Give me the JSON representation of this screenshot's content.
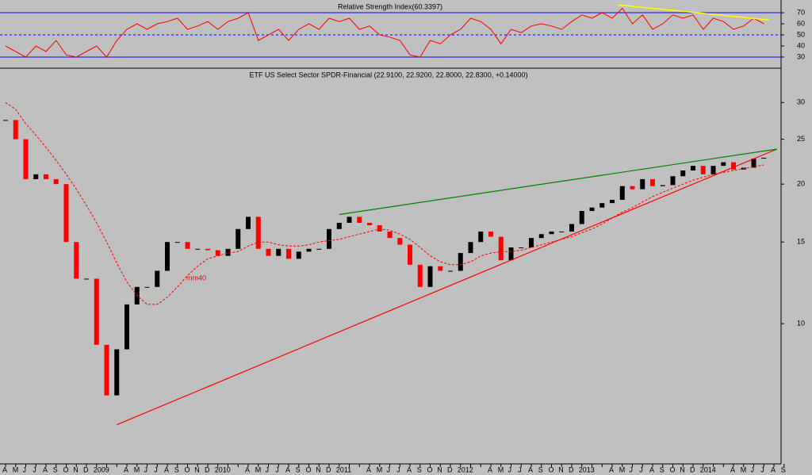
{
  "chart_data": [
    {
      "type": "line",
      "title": "Relative Strength Index(60.3397)",
      "categories": [
        "A",
        "M",
        "J",
        "J",
        "A",
        "S",
        "O",
        "N",
        "D",
        "2009",
        null,
        null,
        "A",
        "M",
        "J",
        "J",
        "A",
        "S",
        "O",
        "N",
        "D",
        "2010",
        null,
        null,
        "A",
        "M",
        "J",
        "J",
        "A",
        "S",
        "O",
        "N",
        "D",
        "2011",
        null,
        null,
        "A",
        "M",
        "J",
        "J",
        "A",
        "S",
        "O",
        "N",
        "D",
        "2012",
        null,
        null,
        "A",
        "M",
        "J",
        "J",
        "A",
        "S",
        "O",
        "N",
        "D",
        "2013",
        null,
        null,
        "A",
        "M",
        "J",
        "J",
        "A",
        "S",
        "O",
        "N",
        "D",
        "2014",
        null,
        null,
        "A",
        "M",
        "J",
        "J",
        "A",
        "S"
      ],
      "series": [
        {
          "name": "RSI",
          "color": "#ff0000",
          "values": [
            40,
            35,
            30,
            40,
            35,
            45,
            32,
            30,
            35,
            40,
            30,
            45,
            55,
            60,
            55,
            60,
            62,
            65,
            55,
            58,
            62,
            55,
            62,
            65,
            70,
            45,
            50,
            55,
            45,
            55,
            60,
            55,
            65,
            62,
            65,
            55,
            58,
            50,
            48,
            45,
            32,
            30,
            45,
            42,
            50,
            55,
            65,
            62,
            55,
            42,
            55,
            52,
            58,
            60,
            58,
            55,
            62,
            68,
            65,
            70,
            65,
            74,
            60,
            68,
            55,
            60,
            68,
            65,
            68,
            55,
            65,
            62,
            55,
            58,
            65,
            60,
            null,
            null
          ]
        }
      ],
      "ylim": [
        21.4,
        78.6
      ],
      "yticks": [
        30,
        40,
        50,
        60,
        70
      ],
      "levels": [
        {
          "value": 70,
          "style": "solid"
        },
        {
          "value": 50,
          "style": "dashed"
        },
        {
          "value": 30,
          "style": "solid"
        }
      ],
      "trendline": {
        "color": "#ffff00",
        "x": [
          60.6,
          75.5
        ],
        "values": [
          77,
          63.5
        ]
      }
    },
    {
      "type": "candlestick",
      "title": "ETF US Select Sector SPDR-Financial (22.9100, 22.9200, 22.8000, 22.8300, +0.14000)",
      "log_scale": true,
      "ylim": [
        4.98,
        35.3
      ],
      "yticks": [
        10,
        15,
        20,
        25,
        30
      ],
      "series": [
        {
          "name": "close",
          "up_color": "#000000",
          "down_color": "#ff0000",
          "values": [
            27.5,
            25,
            20.5,
            21,
            20.5,
            20,
            15,
            12.5,
            12.5,
            9,
            7,
            8.8,
            11,
            12,
            12,
            13,
            15,
            15,
            14.5,
            14.5,
            14.4,
            14,
            14.5,
            16,
            17,
            14.5,
            14,
            14.5,
            13.8,
            14.3,
            14.5,
            14.5,
            16,
            16.5,
            17,
            16.5,
            16.3,
            15.8,
            15.3,
            14.8,
            13.4,
            12,
            13.3,
            13,
            13,
            14.2,
            15,
            15.8,
            15.4,
            13.7,
            14.6,
            14.6,
            15.3,
            15.6,
            15.8,
            15.8,
            16.4,
            17.5,
            17.8,
            18.2,
            18.5,
            19.8,
            19.5,
            20.5,
            19.8,
            19.9,
            20.8,
            21.4,
            21.9,
            21,
            21.9,
            22.3,
            21.5,
            21.7,
            22.7,
            22.8,
            null,
            null
          ]
        },
        {
          "name": "mm40",
          "color": "#ff0000",
          "values": [
            30,
            29,
            27,
            25.5,
            24,
            22.5,
            21,
            19.5,
            18,
            16.5,
            15,
            13.5,
            12.3,
            11.5,
            11,
            11,
            11.4,
            12,
            12.7,
            13.3,
            13.8,
            14,
            14.2,
            14.3,
            14.7,
            15,
            15,
            14.8,
            14.7,
            14.7,
            14.8,
            15,
            15.1,
            15.2,
            15.4,
            15.6,
            15.8,
            16,
            15.9,
            15.6,
            15.2,
            14.6,
            14,
            13.6,
            13.4,
            13.4,
            13.6,
            14,
            14.2,
            14.3,
            14.3,
            14.4,
            14.6,
            14.8,
            15,
            15.2,
            15.4,
            15.7,
            16,
            16.4,
            16.9,
            17.4,
            17.8,
            18.3,
            18.8,
            19.2,
            19.6,
            20,
            20.4,
            20.7,
            21,
            21.2,
            21.4,
            21.6,
            21.8,
            22,
            null,
            null
          ]
        }
      ],
      "annotation": "mm40",
      "trendlines": [
        {
          "color": "#ff0000",
          "x": [
            11,
            76.3
          ],
          "values": [
            6.05,
            23.8
          ]
        },
        {
          "color": "#008000",
          "x": [
            33,
            76.3
          ],
          "values": [
            17.2,
            23.8
          ]
        }
      ]
    }
  ]
}
